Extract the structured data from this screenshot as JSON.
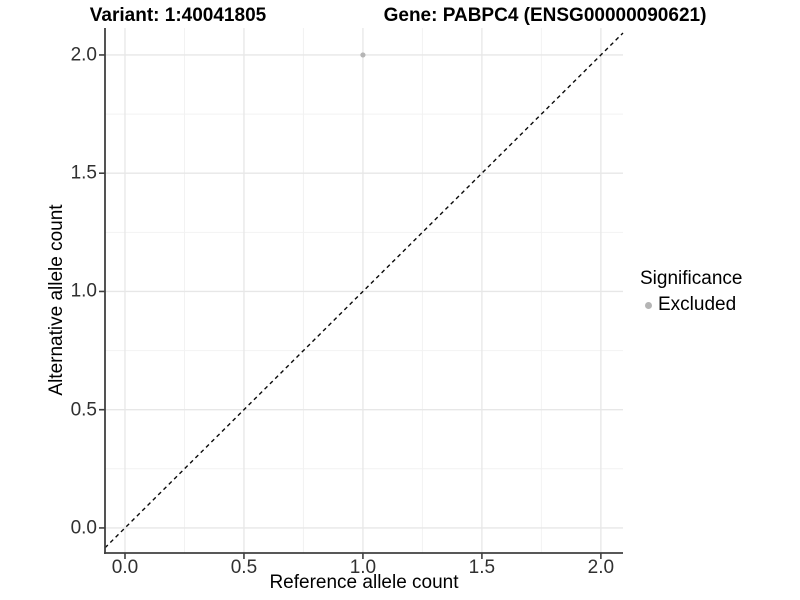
{
  "chart_data": {
    "type": "scatter",
    "titles": {
      "left": "Variant: 1:40041805",
      "right": "Gene: PABPC4 (ENSG00000090621)"
    },
    "xlabel": "Reference allele count",
    "ylabel": "Alternative allele count",
    "x_ticks": {
      "values": [
        0,
        0.5,
        1,
        1.5,
        2
      ],
      "labels": [
        "0.0",
        "0.5",
        "1.0",
        "1.5",
        "2.0"
      ]
    },
    "y_ticks": {
      "values": [
        0,
        0.5,
        1,
        1.5,
        2
      ],
      "labels": [
        "0.0",
        "0.5",
        "1.0",
        "1.5",
        "2.0"
      ]
    },
    "minor_ticks": [
      0.25,
      0.75,
      1.25,
      1.75
    ],
    "x_range": [
      -0.084,
      2.093
    ],
    "y_range": [
      -0.106,
      2.114
    ],
    "grid": {
      "major": true,
      "minor": true
    },
    "identity_line": {
      "style": "dashed",
      "color": "#0a0a0a",
      "equation": "y = x"
    },
    "series": [
      {
        "name": "Excluded",
        "color": "#b5b5b5",
        "points": [
          {
            "x": 1.0,
            "y": 2.0
          }
        ]
      }
    ],
    "legend": {
      "title": "Significance",
      "position": "right",
      "entries": [
        {
          "label": "Excluded",
          "color": "#b5b5b5",
          "marker": "circle"
        }
      ]
    },
    "colors": {
      "axis_line": "#404040",
      "tick_label": "#303030",
      "grid_major": "#e7e7e7",
      "grid_minor": "#f2f2f2",
      "background": "#ffffff"
    }
  }
}
